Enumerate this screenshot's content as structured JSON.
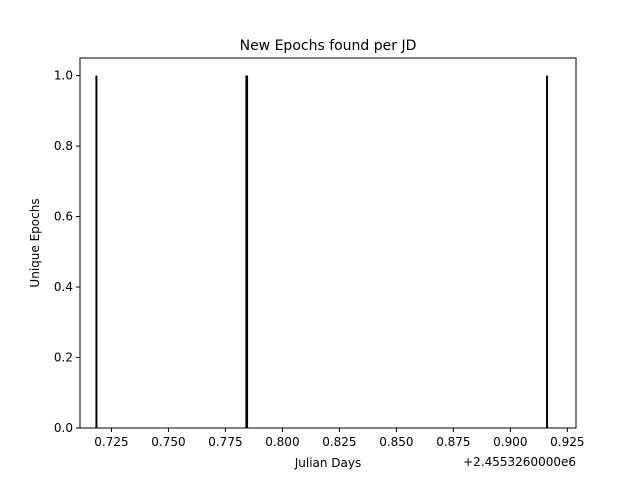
{
  "chart_data": {
    "type": "bar",
    "title": "New Epochs found per JD",
    "xlabel": "Julian Days",
    "ylabel": "Unique Epochs",
    "x_offset_label": "+2.4553260000e6",
    "xlim": [
      0.7112,
      0.9288
    ],
    "ylim": [
      0.0,
      1.05
    ],
    "x_ticks": [
      0.725,
      0.75,
      0.775,
      0.8,
      0.825,
      0.85,
      0.875,
      0.9,
      0.925
    ],
    "x_tick_labels": [
      "0.725",
      "0.750",
      "0.775",
      "0.800",
      "0.825",
      "0.850",
      "0.875",
      "0.900",
      "0.925"
    ],
    "y_ticks": [
      0.0,
      0.2,
      0.4,
      0.6,
      0.8,
      1.0
    ],
    "y_tick_labels": [
      "0.0",
      "0.2",
      "0.4",
      "0.6",
      "0.8",
      "1.0"
    ],
    "grid": false,
    "series": [
      {
        "x": [
          0.7184,
          0.7842,
          0.7845,
          0.9161
        ],
        "values": [
          1,
          1,
          1,
          1
        ]
      }
    ],
    "bar_color": "#000000"
  }
}
